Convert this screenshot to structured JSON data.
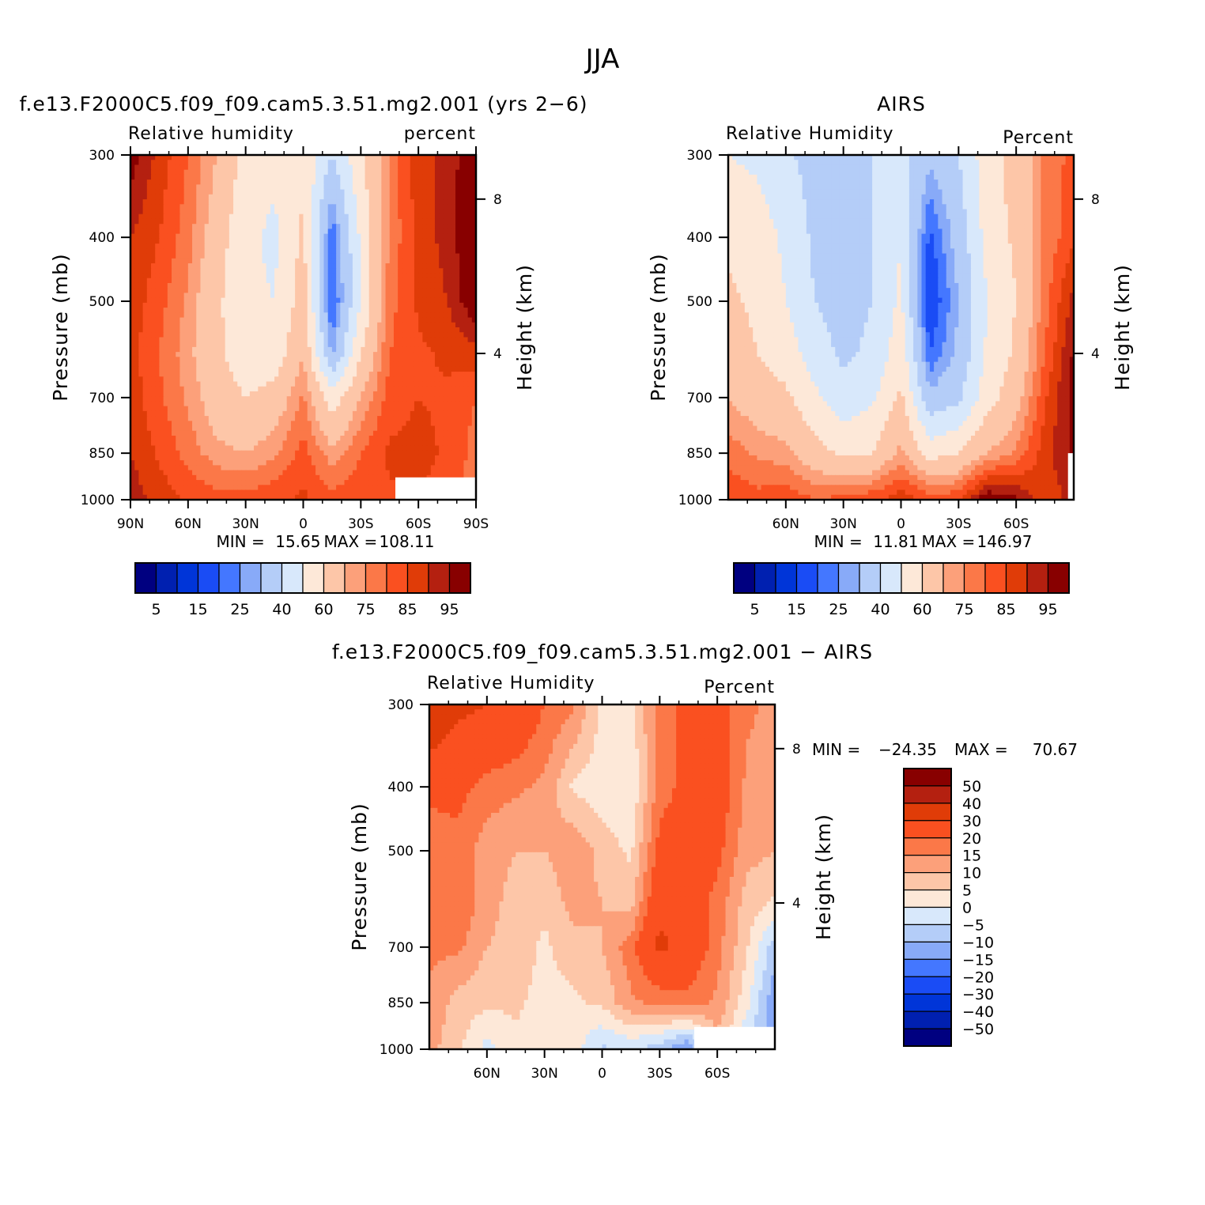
{
  "figure_title": "JJA",
  "palette": {
    "rh_colors": [
      "#000080",
      "#0020b0",
      "#0035d8",
      "#1a4cf5",
      "#4477ff",
      "#88aaf8",
      "#b4cdf8",
      "#d8e8fb",
      "#fde8d8",
      "#fdc6a8",
      "#fca07a",
      "#fb7848",
      "#fa5020",
      "#e03c08",
      "#b42010",
      "#880000"
    ],
    "diff_colors": [
      "#000080",
      "#0020b0",
      "#0035d8",
      "#1a4cf5",
      "#4477ff",
      "#88aaf8",
      "#b4cdf8",
      "#d8e8fb",
      "#fde8d8",
      "#fdc6a8",
      "#fca07a",
      "#fb7848",
      "#fa5020",
      "#e03c08",
      "#b42010",
      "#880000"
    ]
  },
  "chart_data": [
    {
      "type": "heatmap",
      "panel_id": "model",
      "title": "f.e13.F2000C5.f09_f09.cam5.3.51.mg2.001 (yrs 2-6)",
      "left_label": "Relative humidity",
      "right_label": "percent",
      "ylabel": "Pressure (mb)",
      "y2label": "Height (km)",
      "xlim": [
        90,
        -90
      ],
      "ylim": [
        1000,
        300
      ],
      "x_ticks": [
        {
          "v": 90,
          "l": "90N"
        },
        {
          "v": 60,
          "l": "60N"
        },
        {
          "v": 30,
          "l": "30N"
        },
        {
          "v": 0,
          "l": "0"
        },
        {
          "v": -30,
          "l": "30S"
        },
        {
          "v": -60,
          "l": "60S"
        },
        {
          "v": -90,
          "l": "90S"
        }
      ],
      "y_ticks": [
        300,
        400,
        500,
        700,
        850,
        1000
      ],
      "y2_ticks": [
        {
          "p": 350,
          "l": "8"
        },
        {
          "p": 600,
          "l": "4"
        }
      ],
      "min_label": "MIN =",
      "min_value": "15.65",
      "max_label": "MAX =",
      "max_value": "108.11",
      "missing": {
        "lat_from": -48,
        "lat_to": -90,
        "p_from": 925,
        "p_to": 1000
      },
      "columns": [
        {
          "lat": 90,
          "vals": [
            98,
            90,
            88,
            87,
            88,
            90,
            93
          ]
        },
        {
          "lat": 75,
          "vals": [
            88,
            85,
            82,
            80,
            81,
            84,
            88
          ]
        },
        {
          "lat": 60,
          "vals": [
            80,
            77,
            74,
            72,
            74,
            78,
            84
          ]
        },
        {
          "lat": 45,
          "vals": [
            70,
            65,
            62,
            62,
            65,
            72,
            82
          ]
        },
        {
          "lat": 30,
          "vals": [
            57,
            52,
            52,
            54,
            60,
            70,
            82
          ]
        },
        {
          "lat": 15,
          "vals": [
            52,
            48,
            50,
            54,
            64,
            74,
            84
          ]
        },
        {
          "lat": 0,
          "vals": [
            58,
            62,
            65,
            70,
            76,
            82,
            86
          ]
        },
        {
          "lat": -15,
          "vals": [
            40,
            20,
            18,
            28,
            55,
            72,
            82
          ]
        },
        {
          "lat": -30,
          "vals": [
            58,
            52,
            50,
            60,
            70,
            80,
            84
          ]
        },
        {
          "lat": -45,
          "vals": [
            76,
            76,
            78,
            80,
            82,
            86,
            84
          ]
        },
        {
          "lat": -60,
          "vals": [
            88,
            87,
            86,
            84,
            85,
            87,
            85
          ]
        },
        {
          "lat": -75,
          "vals": [
            92,
            92,
            90,
            86,
            84,
            84,
            82
          ]
        },
        {
          "lat": -90,
          "vals": [
            100,
            102,
            100,
            88,
            80,
            78,
            78
          ]
        }
      ],
      "colorbar": {
        "labels": [
          "5",
          "15",
          "25",
          "40",
          "60",
          "75",
          "85",
          "95"
        ]
      }
    },
    {
      "type": "heatmap",
      "panel_id": "airs",
      "title": "AIRS",
      "left_label": "Relative Humidity",
      "right_label": "Percent",
      "ylabel": "Pressure (mb)",
      "y2label": "Height (km)",
      "xlim": [
        90,
        -90
      ],
      "ylim": [
        1000,
        300
      ],
      "x_ticks": [
        {
          "v": 60,
          "l": "60N"
        },
        {
          "v": 30,
          "l": "30N"
        },
        {
          "v": 0,
          "l": "0"
        },
        {
          "v": -30,
          "l": "30S"
        },
        {
          "v": -60,
          "l": "60S"
        }
      ],
      "y_ticks": [
        300,
        400,
        500,
        700,
        850,
        1000
      ],
      "y2_ticks": [
        {
          "p": 350,
          "l": "8"
        },
        {
          "p": 600,
          "l": "4"
        }
      ],
      "min_label": "MIN =",
      "min_value": "11.81",
      "max_label": "MAX =",
      "max_value": "146.97",
      "missing": {
        "lat_from": -87,
        "lat_to": -90,
        "p_from": 850,
        "p_to": 1000
      },
      "columns": [
        {
          "lat": 90,
          "vals": [
            50,
            58,
            62,
            65,
            70,
            78,
            84
          ]
        },
        {
          "lat": 75,
          "vals": [
            48,
            55,
            58,
            60,
            65,
            74,
            82
          ]
        },
        {
          "lat": 60,
          "vals": [
            42,
            48,
            50,
            55,
            62,
            72,
            84
          ]
        },
        {
          "lat": 45,
          "vals": [
            36,
            38,
            40,
            45,
            52,
            64,
            80
          ]
        },
        {
          "lat": 30,
          "vals": [
            38,
            36,
            36,
            38,
            44,
            58,
            82
          ]
        },
        {
          "lat": 15,
          "vals": [
            40,
            40,
            40,
            42,
            48,
            60,
            84
          ]
        },
        {
          "lat": 0,
          "vals": [
            44,
            50,
            52,
            56,
            62,
            72,
            88
          ]
        },
        {
          "lat": -15,
          "vals": [
            32,
            18,
            14,
            20,
            32,
            56,
            84
          ]
        },
        {
          "lat": -30,
          "vals": [
            40,
            34,
            30,
            32,
            38,
            60,
            84
          ]
        },
        {
          "lat": -45,
          "vals": [
            56,
            54,
            50,
            52,
            56,
            70,
            100
          ]
        },
        {
          "lat": -60,
          "vals": [
            64,
            62,
            60,
            62,
            66,
            76,
            96
          ]
        },
        {
          "lat": -75,
          "vals": [
            76,
            76,
            78,
            80,
            84,
            88,
            86
          ]
        },
        {
          "lat": -90,
          "vals": [
            82,
            84,
            92,
            96,
            98,
            96,
            92
          ]
        }
      ],
      "colorbar": {
        "labels": [
          "5",
          "15",
          "25",
          "40",
          "60",
          "75",
          "85",
          "95"
        ]
      }
    },
    {
      "type": "heatmap",
      "panel_id": "diff",
      "title": "f.e13.F2000C5.f09_f09.cam5.3.51.mg2.001 - AIRS",
      "left_label": "Relative Humidity",
      "right_label": "Percent",
      "ylabel": "Pressure (mb)",
      "y2label": "Height (km)",
      "xlim": [
        90,
        -90
      ],
      "ylim": [
        1000,
        300
      ],
      "x_ticks": [
        {
          "v": 60,
          "l": "60N"
        },
        {
          "v": 30,
          "l": "30N"
        },
        {
          "v": 0,
          "l": "0"
        },
        {
          "v": -30,
          "l": "30S"
        },
        {
          "v": -60,
          "l": "60S"
        }
      ],
      "y_ticks": [
        300,
        400,
        500,
        700,
        850,
        1000
      ],
      "y2_ticks": [
        {
          "p": 350,
          "l": "8"
        },
        {
          "p": 600,
          "l": "4"
        }
      ],
      "min_label": "MIN =",
      "min_value": "-24.35",
      "max_label": "MAX =",
      "max_value": "70.67",
      "missing": {
        "lat_from": -48,
        "lat_to": -90,
        "p_from": 925,
        "p_to": 1000
      },
      "columns": [
        {
          "lat": 90,
          "vals": [
            40,
            22,
            16,
            18,
            16,
            14,
            12
          ]
        },
        {
          "lat": 75,
          "vals": [
            32,
            22,
            18,
            20,
            16,
            8,
            6
          ]
        },
        {
          "lat": 60,
          "vals": [
            30,
            18,
            12,
            12,
            10,
            6,
            -2
          ]
        },
        {
          "lat": 45,
          "vals": [
            28,
            16,
            10,
            8,
            8,
            6,
            4
          ]
        },
        {
          "lat": 30,
          "vals": [
            20,
            14,
            10,
            6,
            4,
            3,
            2
          ]
        },
        {
          "lat": 15,
          "vals": [
            16,
            4,
            14,
            12,
            8,
            4,
            2
          ]
        },
        {
          "lat": 0,
          "vals": [
            4,
            2,
            8,
            10,
            10,
            6,
            -6
          ]
        },
        {
          "lat": -15,
          "vals": [
            3,
            0,
            4,
            8,
            18,
            14,
            -4
          ]
        },
        {
          "lat": -30,
          "vals": [
            18,
            18,
            22,
            28,
            32,
            16,
            -8
          ]
        },
        {
          "lat": -45,
          "vals": [
            22,
            22,
            22,
            24,
            26,
            18,
            -16
          ]
        },
        {
          "lat": -60,
          "vals": [
            24,
            25,
            22,
            18,
            17,
            14,
            8
          ]
        },
        {
          "lat": -75,
          "vals": [
            16,
            14,
            12,
            8,
            6,
            2,
            -6
          ]
        },
        {
          "lat": -90,
          "vals": [
            14,
            12,
            10,
            4,
            -8,
            -14,
            -12
          ]
        }
      ],
      "colorbar": {
        "labels": [
          "50",
          "40",
          "30",
          "20",
          "15",
          "10",
          "5",
          "0",
          "-5",
          "-10",
          "-15",
          "-20",
          "-30",
          "-40",
          "-50"
        ]
      }
    }
  ]
}
